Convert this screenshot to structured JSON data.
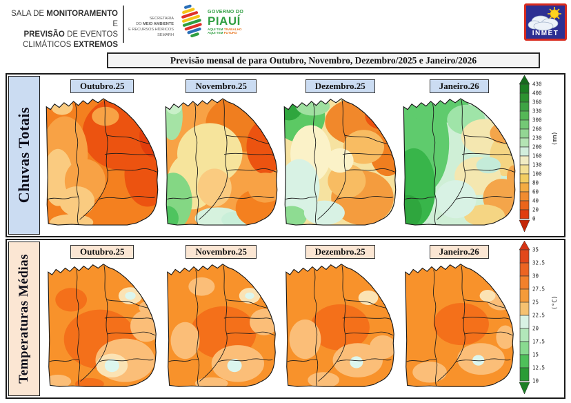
{
  "header": {
    "sala": {
      "l1a": "SALA DE ",
      "l1b": "MONITORAMENTO",
      "l1c": " E",
      "l2a": "PREVISÃO",
      "l2b": " DE EVENTOS",
      "l3a": "CLIMÁTICOS ",
      "l3b": "EXTREMOS"
    },
    "semarh": {
      "l1": "SECRETARIA",
      "l2a": "DO ",
      "l2b": "MEIO AMBIENTE",
      "l3": "E RECURSOS HÍDRICOS",
      "l4": "SEMARH"
    },
    "piaui": {
      "governo": "GOVERNO DO",
      "name": "PIAUÍ",
      "tag1a": "AQUI TEM ",
      "tag1b": "TRABALHO",
      "tag2a": "AQUI TEM ",
      "tag2b": "FUTURO"
    },
    "inmet_label": "INMET"
  },
  "title": "Previsão mensal de para Outubro, Novembro, Dezembro/2025 e Janeiro/2026",
  "rows": [
    {
      "id": "chuvas",
      "label": "Chuvas Totais",
      "accent_bg": "#cbdcf2",
      "months": [
        "Outubro.25",
        "Novembro.25",
        "Dezembro.25",
        "Janeiro.26"
      ],
      "scale": {
        "unit": "(mm)",
        "labels": [
          "430",
          "400",
          "360",
          "330",
          "300",
          "260",
          "230",
          "200",
          "160",
          "130",
          "100",
          "80",
          "60",
          "40",
          "20",
          "0"
        ],
        "segment_colors": [
          "#1b7e22",
          "#2c9230",
          "#3da344",
          "#55b757",
          "#74c876",
          "#93d694",
          "#b4e4b4",
          "#d2eedd",
          "#f1ecc4",
          "#f3e095",
          "#f2cd61",
          "#f3ab42",
          "#f08c2f",
          "#ea651a",
          "#e03d10"
        ],
        "arrow_top": "#156a1c",
        "arrow_bottom": "#c42708"
      },
      "maps": [
        {
          "base": "#F4801F",
          "patches": [
            [
              118,
              55,
              62,
              55,
              "#EC5310"
            ],
            [
              152,
              115,
              34,
              48,
              "#EC5310"
            ],
            [
              160,
              60,
              20,
              30,
              "#E23E0C"
            ],
            [
              30,
              85,
              34,
              55,
              "#F8A245"
            ],
            [
              20,
              120,
              22,
              42,
              "#FACB80"
            ],
            [
              26,
              16,
              16,
              12,
              "#FACB80"
            ],
            [
              60,
              125,
              30,
              32,
              "#F8A245"
            ],
            [
              48,
              155,
              26,
              22,
              "#FACB80"
            ],
            [
              40,
              186,
              32,
              12,
              "#FACB80"
            ],
            [
              90,
              30,
              20,
              14,
              "#F8A245"
            ]
          ]
        },
        {
          "base": "#F8A245",
          "patches": [
            [
              120,
              40,
              58,
              42,
              "#F07E1F"
            ],
            [
              150,
              75,
              28,
              40,
              "#EC5310"
            ],
            [
              165,
              45,
              12,
              20,
              "#EC5310"
            ],
            [
              12,
              30,
              16,
              35,
              "#A5E3A5"
            ],
            [
              15,
              15,
              12,
              12,
              "#C9F0C9"
            ],
            [
              68,
              85,
              48,
              45,
              "#F6E49C"
            ],
            [
              42,
              125,
              36,
              42,
              "#F6E49C"
            ],
            [
              75,
              135,
              25,
              28,
              "#FACB80"
            ],
            [
              14,
              155,
              28,
              42,
              "#84D784"
            ],
            [
              6,
              180,
              16,
              18,
              "#4FC45F"
            ],
            [
              80,
              180,
              34,
              16,
              "#D6F2DE"
            ],
            [
              105,
              182,
              20,
              12,
              "#C9EFD9"
            ],
            [
              140,
              165,
              34,
              28,
              "#F4801F"
            ],
            [
              150,
              135,
              26,
              22,
              "#F8A245"
            ]
          ]
        },
        {
          "base": "#F6E2A0",
          "patches": [
            [
              25,
              30,
              38,
              38,
              "#5CC964"
            ],
            [
              10,
              16,
              20,
              20,
              "#2FA63E"
            ],
            [
              45,
              15,
              25,
              14,
              "#9FE0A0"
            ],
            [
              118,
              38,
              55,
              36,
              "#F1882B"
            ],
            [
              150,
              30,
              28,
              20,
              "#EC5310"
            ],
            [
              155,
              82,
              26,
              36,
              "#F07E1F"
            ],
            [
              120,
              75,
              30,
              25,
              "#F8BC62"
            ],
            [
              42,
              85,
              30,
              42,
              "#FBF2C8"
            ],
            [
              25,
              135,
              30,
              42,
              "#D8F2E4"
            ],
            [
              14,
              178,
              22,
              16,
              "#8EDC92"
            ],
            [
              118,
              150,
              46,
              40,
              "#F49C3E"
            ],
            [
              95,
              125,
              28,
              25,
              "#F8BC62"
            ],
            [
              62,
              172,
              30,
              18,
              "#D8F2E4"
            ],
            [
              85,
              95,
              20,
              18,
              "#FBF2C8"
            ]
          ]
        },
        {
          "base": "#CFEFD6",
          "patches": [
            [
              28,
              70,
              42,
              75,
              "#5FCB6D"
            ],
            [
              18,
              135,
              32,
              58,
              "#38B54A"
            ],
            [
              10,
              170,
              20,
              24,
              "#2FA63E"
            ],
            [
              55,
              18,
              45,
              22,
              "#5FCB6D"
            ],
            [
              95,
              35,
              28,
              22,
              "#9FE4A8"
            ],
            [
              122,
              60,
              34,
              26,
              "#F4E7B0"
            ],
            [
              152,
              88,
              22,
              30,
              "#F5D583"
            ],
            [
              148,
              55,
              18,
              15,
              "#F4A54A"
            ],
            [
              112,
              118,
              34,
              28,
              "#F4E7B0"
            ],
            [
              148,
              150,
              28,
              28,
              "#F4A54A"
            ],
            [
              122,
              176,
              30,
              16,
              "#F5D583"
            ],
            [
              80,
              152,
              30,
              28,
              "#D8F2E4"
            ],
            [
              128,
              102,
              18,
              12,
              "#C4EBD9"
            ],
            [
              165,
              120,
              10,
              18,
              "#F4A54A"
            ]
          ]
        }
      ]
    },
    {
      "id": "temperaturas",
      "label": "Temperaturas Médias",
      "accent_bg": "#fbe6d3",
      "months": [
        "Outubro.25",
        "Novembro.25",
        "Dezembro.25",
        "Janeiro.26"
      ],
      "scale": {
        "unit": "(°C)",
        "labels": [
          "35",
          "32.5",
          "30",
          "27.5",
          "25",
          "22.5",
          "20",
          "17.5",
          "15",
          "12.5",
          "10"
        ],
        "segment_colors": [
          "#e2471a",
          "#ec6422",
          "#f2812c",
          "#f59b3a",
          "#f5c170",
          "#d8f2e4",
          "#b2e7ba",
          "#89da90",
          "#4fc05a",
          "#2b9c35"
        ],
        "arrow_top": "#d53313",
        "arrow_bottom": "#1d7f26"
      },
      "maps": [
        {
          "base": "#F8922B",
          "patches": [
            [
              82,
              118,
              55,
              45,
              "#F4701A"
            ],
            [
              38,
              58,
              24,
              18,
              "#F4701A"
            ],
            [
              120,
              150,
              45,
              33,
              "#FBBE78"
            ],
            [
              152,
              98,
              24,
              24,
              "#FBBE78"
            ],
            [
              128,
              52,
              18,
              13,
              "#FBE3B4"
            ],
            [
              128,
              52,
              8,
              6,
              "#DCF6EE"
            ],
            [
              100,
              158,
              24,
              18,
              "#FBE3B4"
            ],
            [
              100,
              158,
              11,
              10,
              "#DCF6EE"
            ],
            [
              18,
              182,
              20,
              10,
              "#FBBE78"
            ],
            [
              66,
              186,
              22,
              9,
              "#F4701A"
            ],
            [
              155,
              70,
              14,
              10,
              "#FBBE78"
            ]
          ]
        },
        {
          "base": "#F8922B",
          "patches": [
            [
              88,
              108,
              50,
              40,
              "#F4701A"
            ],
            [
              55,
              38,
              20,
              14,
              "#FBBE78"
            ],
            [
              128,
              52,
              16,
              12,
              "#FBE3B4"
            ],
            [
              128,
              52,
              7,
              5,
              "#DCF6EE"
            ],
            [
              110,
              155,
              40,
              28,
              "#FBBE78"
            ],
            [
              105,
              158,
              11,
              10,
              "#DCF6EE"
            ],
            [
              150,
              92,
              22,
              20,
              "#FBBE78"
            ],
            [
              30,
              120,
              22,
              28,
              "#FBBE78"
            ],
            [
              70,
              185,
              25,
              9,
              "#FBBE78"
            ]
          ]
        },
        {
          "base": "#F8922B",
          "patches": [
            [
              85,
              100,
              45,
              35,
              "#F4701A"
            ],
            [
              128,
              55,
              15,
              11,
              "#FBE3B4"
            ],
            [
              112,
              150,
              38,
              26,
              "#FBBE78"
            ],
            [
              110,
              153,
              10,
              9,
              "#DCF6EE"
            ],
            [
              32,
              118,
              24,
              30,
              "#FBBE78"
            ],
            [
              150,
              130,
              20,
              18,
              "#FBBE78"
            ],
            [
              60,
              180,
              24,
              12,
              "#FBBE78"
            ]
          ]
        },
        {
          "base": "#F8922B",
          "patches": [
            [
              88,
              95,
              42,
              32,
              "#F4701A"
            ],
            [
              118,
              148,
              36,
              24,
              "#FBBE78"
            ],
            [
              114,
              150,
              9,
              8,
              "#DCF6EE"
            ],
            [
              148,
              60,
              20,
              14,
              "#FBBE78"
            ],
            [
              128,
              52,
              12,
              9,
              "#FBE3B4"
            ],
            [
              40,
              168,
              26,
              16,
              "#FBBE78"
            ],
            [
              155,
              115,
              14,
              18,
              "#FBBE78"
            ]
          ]
        }
      ]
    }
  ]
}
